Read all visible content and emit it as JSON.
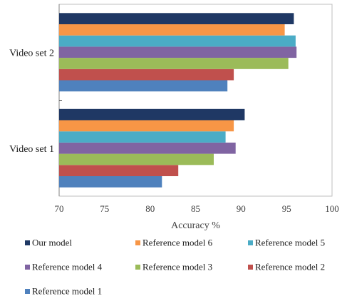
{
  "chart_data": {
    "type": "bar",
    "orientation": "horizontal",
    "categories": [
      "Video set 1",
      "Video set 2"
    ],
    "series": [
      {
        "name": "Reference model 1",
        "color": "#4F81BD",
        "values": [
          81.3,
          88.5
        ]
      },
      {
        "name": "Reference model 2",
        "color": "#C0504D",
        "values": [
          83.1,
          89.2
        ]
      },
      {
        "name": "Reference model 3",
        "color": "#9BBB59",
        "values": [
          87.0,
          95.2
        ]
      },
      {
        "name": "Reference model 4",
        "color": "#8064A2",
        "values": [
          89.4,
          96.1
        ]
      },
      {
        "name": "Reference model 5",
        "color": "#4BACC6",
        "values": [
          88.3,
          96.0
        ]
      },
      {
        "name": "Reference model 6",
        "color": "#F79646",
        "values": [
          89.2,
          94.8
        ]
      },
      {
        "name": "Our model",
        "color": "#1F3864",
        "values": [
          90.4,
          95.8
        ]
      }
    ],
    "xlabel": "Accuracy %",
    "xlim": [
      70,
      100
    ],
    "xticks": [
      "70",
      "75",
      "80",
      "85",
      "90",
      "95",
      "100"
    ],
    "legend_position": "bottom",
    "legend_order": [
      "Our model",
      "Reference model 6",
      "Reference model 5",
      "Reference model 4",
      "Reference model 3",
      "Reference model 2",
      "Reference model 1"
    ],
    "grid": false
  }
}
